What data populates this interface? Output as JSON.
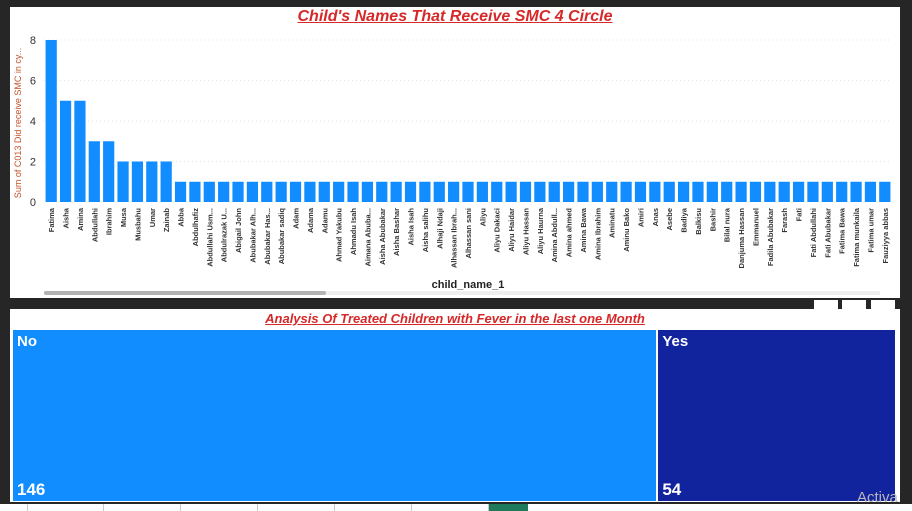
{
  "colors": {
    "bar": "#118dff",
    "title": "#d62828",
    "axis_text": "#333333",
    "y_label": "#c4512a",
    "gridline": "#e4e4e4",
    "tile_no": "#118dff",
    "tile_yes": "#12239e"
  },
  "chart_data": [
    {
      "type": "bar",
      "title": "Child's Names That Receive SMC 4 Circle",
      "xlabel": "child_name_1",
      "ylabel": "Sum of C013 Did receive SMC in cy...",
      "ylim": [
        0,
        8
      ],
      "yticks": [
        0,
        2,
        4,
        6,
        8
      ],
      "grid": true,
      "categories": [
        "Fatima",
        "Aisha",
        "Amina",
        "Abdullahi",
        "Ibrahim",
        "Musa",
        "Musbahu",
        "Umar",
        "Zainab",
        "Abba",
        "Abdulhafiz",
        "Abdullahi Usm...",
        "Abdulrazak U...",
        "Abigail John",
        "Abubakar Alh...",
        "Abubakar Has...",
        "Abubakar sadiq",
        "Adam",
        "Adama",
        "Adamu",
        "Ahmad Yakubu",
        "Ahmadu Isah",
        "Aimana Abuba...",
        "Aisha Abubakar",
        "Aisha Bashar",
        "Aisha Isah",
        "Aisha salihu",
        "Alhaji Ndaji",
        "Alhassan Ibrah...",
        "Alhassan sani",
        "Aliyu",
        "Aliyu Dakaci",
        "Aliyu Haidar",
        "Aliyu Hassan",
        "Aliyu Haurna",
        "Amina Abdull...",
        "Amina ahmed",
        "Amina Bawa",
        "Amina Ibrahim",
        "Aminatu",
        "Aminu Bako",
        "Amiri",
        "Anas",
        "Asebe",
        "Badiya",
        "Balkisu",
        "Bashir",
        "Bilal nura",
        "Danjuma Hassan",
        "Emmanuel",
        "Fadila Abubakar",
        "Farash",
        "Fati",
        "Fati Abdullahi",
        "Fati Abubakar",
        "Fatima Bawa",
        "Fatima munkaila",
        "Fatima umar",
        "Fauziyya abbas"
      ],
      "values": [
        8,
        5,
        5,
        3,
        3,
        2,
        2,
        2,
        2,
        1,
        1,
        1,
        1,
        1,
        1,
        1,
        1,
        1,
        1,
        1,
        1,
        1,
        1,
        1,
        1,
        1,
        1,
        1,
        1,
        1,
        1,
        1,
        1,
        1,
        1,
        1,
        1,
        1,
        1,
        1,
        1,
        1,
        1,
        1,
        1,
        1,
        1,
        1,
        1,
        1,
        1,
        1,
        1,
        1,
        1,
        1,
        1,
        1,
        1
      ]
    },
    {
      "type": "treemap",
      "title": "Analysis Of Treated Children with Fever in the last one Month",
      "categories": [
        "No",
        "Yes"
      ],
      "values": [
        146,
        54
      ]
    }
  ],
  "watermark": "Activa"
}
